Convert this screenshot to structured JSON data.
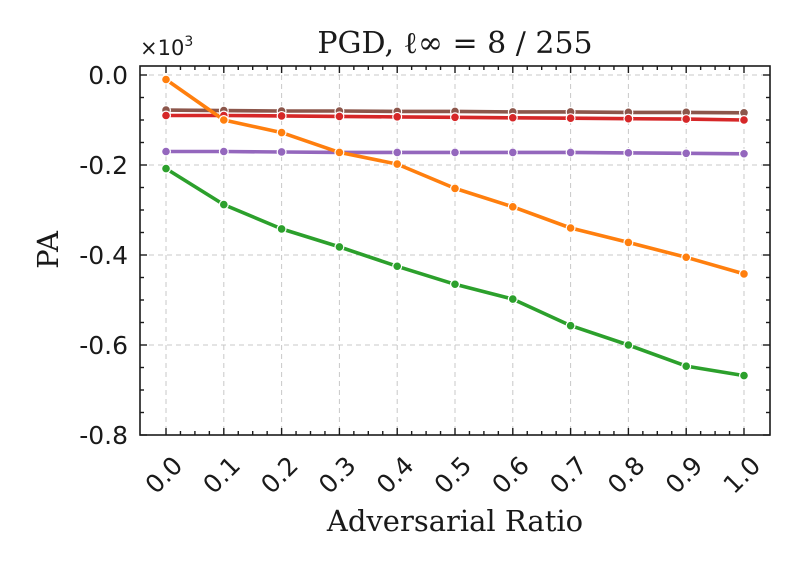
{
  "chart_data": {
    "type": "line",
    "title": "PGD, ℓ∞ = 8 / 255",
    "xlabel": "Adversarial Ratio",
    "ylabel": "PA",
    "y_multiplier": {
      "base": "×10",
      "exponent": "3"
    },
    "x": [
      0.0,
      0.1,
      0.2,
      0.3,
      0.4,
      0.5,
      0.6,
      0.7,
      0.8,
      0.9,
      1.0
    ],
    "x_tick_labels": [
      "0.0",
      "0.1",
      "0.2",
      "0.3",
      "0.4",
      "0.5",
      "0.6",
      "0.7",
      "0.8",
      "0.9",
      "1.0"
    ],
    "y_ticks": [
      0.0,
      -0.2,
      -0.4,
      -0.6,
      -0.8
    ],
    "y_tick_labels": [
      "0.0",
      "-0.2",
      "-0.4",
      "-0.6",
      "-0.8"
    ],
    "xlim": [
      -0.045,
      1.045
    ],
    "ylim": [
      -0.8,
      0.02
    ],
    "grid": true,
    "series": [
      {
        "name": "series-brown",
        "color": "#8c564b",
        "values": [
          -0.078,
          -0.079,
          -0.08,
          -0.08,
          -0.081,
          -0.081,
          -0.082,
          -0.082,
          -0.083,
          -0.083,
          -0.084
        ]
      },
      {
        "name": "series-red",
        "color": "#d62728",
        "values": [
          -0.09,
          -0.09,
          -0.091,
          -0.092,
          -0.093,
          -0.094,
          -0.095,
          -0.096,
          -0.097,
          -0.098,
          -0.1
        ]
      },
      {
        "name": "series-purple",
        "color": "#9467bd",
        "values": [
          -0.17,
          -0.17,
          -0.171,
          -0.172,
          -0.172,
          -0.172,
          -0.172,
          -0.172,
          -0.173,
          -0.174,
          -0.175
        ]
      },
      {
        "name": "series-orange",
        "color": "#ff7f0e",
        "values": [
          -0.01,
          -0.1,
          -0.128,
          -0.172,
          -0.198,
          -0.252,
          -0.293,
          -0.34,
          -0.372,
          -0.405,
          -0.442
        ]
      },
      {
        "name": "series-green",
        "color": "#2ca02c",
        "values": [
          -0.208,
          -0.288,
          -0.342,
          -0.382,
          -0.425,
          -0.465,
          -0.498,
          -0.557,
          -0.6,
          -0.647,
          -0.668
        ]
      }
    ]
  }
}
